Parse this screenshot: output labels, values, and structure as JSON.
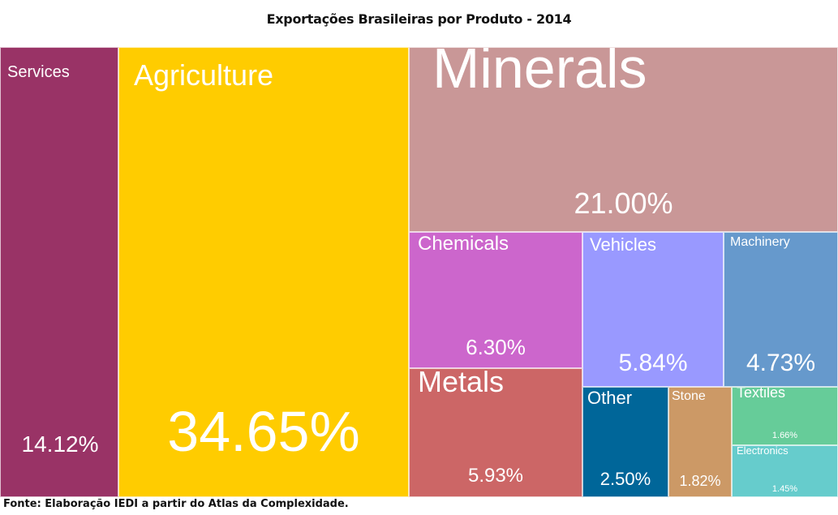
{
  "chart_data": {
    "type": "treemap",
    "title": "Exportações Brasileiras por Produto - 2014",
    "source": "Fonte: Elaboração IEDI a partir do Atlas da Complexidade.",
    "unit": "% of total exports",
    "items": [
      {
        "name": "Services",
        "label": "Services",
        "value": 14.12,
        "value_label": "14.12%",
        "color": "#993366"
      },
      {
        "name": "Agriculture",
        "label": "Agriculture",
        "value": 34.65,
        "value_label": "34.65%",
        "color": "#ffcc00"
      },
      {
        "name": "Minerals",
        "label": "Minerals",
        "value": 21.0,
        "value_label": "21.00%",
        "color": "#c99797"
      },
      {
        "name": "Chemicals",
        "label": "Chemicals",
        "value": 6.3,
        "value_label": "6.30%",
        "color": "#cc66cc"
      },
      {
        "name": "Metals",
        "label": "Metals",
        "value": 5.93,
        "value_label": "5.93%",
        "color": "#cc6666"
      },
      {
        "name": "Vehicles",
        "label": "Vehicles",
        "value": 5.84,
        "value_label": "5.84%",
        "color": "#9999ff"
      },
      {
        "name": "Machinery",
        "label": "Machinery",
        "value": 4.73,
        "value_label": "4.73%",
        "color": "#6699cc"
      },
      {
        "name": "Other",
        "label": "Other",
        "value": 2.5,
        "value_label": "2.50%",
        "color": "#006699"
      },
      {
        "name": "Stone",
        "label": "Stone",
        "value": 1.82,
        "value_label": "1.82%",
        "color": "#cc9966"
      },
      {
        "name": "Textiles",
        "label": "Textiles",
        "value": 1.66,
        "value_label": "1.66%",
        "color": "#66cc99"
      },
      {
        "name": "Electronics",
        "label": "Electronics",
        "value": 1.45,
        "value_label": "1.45%",
        "color": "#66cccc"
      }
    ]
  }
}
